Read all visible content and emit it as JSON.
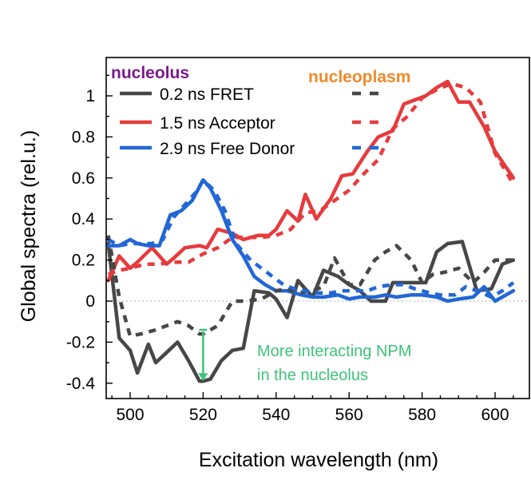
{
  "chart_data": {
    "type": "line",
    "title": "",
    "xlabel": "Excitation wavelength (nm)",
    "ylabel": "Global spectra (rel.u.)",
    "xlim": [
      494,
      605
    ],
    "ylim": [
      -0.47,
      1.17
    ],
    "x_ticks": [
      500,
      520,
      540,
      560,
      580,
      600
    ],
    "y_ticks": [
      -0.4,
      -0.2,
      0,
      0.2,
      0.4,
      0.6,
      0.8,
      1
    ],
    "x_tick_labels": [
      "500",
      "520",
      "540",
      "560",
      "580",
      "600"
    ],
    "y_tick_labels": [
      "-0.4",
      "-0.2",
      "0",
      "0.2",
      "0.4",
      "0.6",
      "0.8",
      "1"
    ],
    "zero_line": true,
    "groups": [
      {
        "title": "nucleolus",
        "color": "#7a1a8c",
        "line_style": "solid"
      },
      {
        "title": "nucleoplasm",
        "color": "#ee8a2a",
        "line_style": "dashed"
      }
    ],
    "series": [
      {
        "name": "0.2 ns FRET",
        "group": "nucleolus",
        "style": "solid",
        "color": "#474747",
        "x": [
          494,
          497,
          500,
          502,
          505,
          507,
          510,
          513,
          516,
          519,
          520,
          522,
          525,
          528,
          531,
          534,
          538,
          540,
          543,
          546,
          550,
          553,
          557,
          560,
          563,
          566,
          570,
          572,
          575,
          578,
          581,
          584,
          587,
          591,
          595,
          599,
          602,
          605
        ],
        "y": [
          0.28,
          -0.18,
          -0.24,
          -0.35,
          -0.21,
          -0.3,
          -0.25,
          -0.2,
          -0.29,
          -0.39,
          -0.39,
          -0.38,
          -0.29,
          -0.24,
          -0.23,
          0.05,
          0.04,
          0.01,
          -0.08,
          0.1,
          0.02,
          0.15,
          0.12,
          0.08,
          0.05,
          0.0,
          0.0,
          0.09,
          0.09,
          0.09,
          0.09,
          0.24,
          0.28,
          0.29,
          0.05,
          0.06,
          0.18,
          0.2
        ]
      },
      {
        "name": "1.5 ns Acceptor",
        "group": "nucleolus",
        "style": "solid",
        "color": "#e63b3d",
        "x": [
          494,
          497,
          500,
          502,
          506,
          510,
          512,
          515,
          519,
          521,
          524,
          528,
          531,
          535,
          538,
          540,
          543,
          546,
          548,
          551,
          555,
          558,
          561,
          565,
          568,
          572,
          575,
          578,
          581,
          584,
          587,
          590,
          593,
          597,
          600,
          605
        ],
        "y": [
          0.1,
          0.22,
          0.16,
          0.19,
          0.26,
          0.18,
          0.21,
          0.26,
          0.27,
          0.26,
          0.35,
          0.33,
          0.3,
          0.32,
          0.32,
          0.35,
          0.44,
          0.39,
          0.52,
          0.4,
          0.5,
          0.61,
          0.62,
          0.73,
          0.8,
          0.83,
          0.96,
          0.98,
          1.0,
          1.04,
          1.07,
          0.97,
          0.97,
          0.85,
          0.73,
          0.6
        ]
      },
      {
        "name": "2.9 ns Free Donor",
        "group": "nucleolus",
        "style": "solid",
        "color": "#2267d6",
        "x": [
          494,
          497,
          500,
          502,
          505,
          508,
          511,
          514,
          517,
          520,
          522,
          525,
          528,
          531,
          534,
          537,
          540,
          543,
          547,
          550,
          553,
          557,
          560,
          563,
          567,
          570,
          573,
          577,
          580,
          584,
          587,
          590,
          594,
          597,
          600,
          603,
          605
        ],
        "y": [
          0.27,
          0.27,
          0.3,
          0.28,
          0.27,
          0.27,
          0.42,
          0.44,
          0.49,
          0.59,
          0.55,
          0.44,
          0.3,
          0.22,
          0.12,
          0.08,
          0.05,
          0.05,
          0.03,
          0.02,
          0.02,
          0.03,
          0.01,
          0.02,
          0.02,
          0.03,
          0.02,
          0.03,
          0.03,
          0.02,
          0.0,
          0.01,
          0.02,
          0.07,
          0.0,
          0.03,
          0.05
        ]
      },
      {
        "name": "0.2 ns FRET",
        "group": "nucleoplasm",
        "style": "dashed",
        "color": "#474747",
        "x": [
          494,
          497,
          500,
          503,
          507,
          510,
          513,
          516,
          519,
          520,
          524,
          528,
          532,
          536,
          540,
          543,
          546,
          550,
          553,
          556,
          560,
          563,
          567,
          570,
          573,
          577,
          580,
          583,
          586,
          590,
          594,
          597,
          600,
          605
        ],
        "y": [
          0.32,
          0.02,
          -0.17,
          -0.16,
          -0.14,
          -0.12,
          -0.1,
          -0.12,
          -0.16,
          -0.16,
          -0.12,
          0.0,
          0.0,
          0.01,
          0.05,
          0.06,
          0.04,
          0.05,
          0.07,
          0.21,
          0.08,
          0.08,
          0.2,
          0.24,
          0.27,
          0.2,
          0.09,
          0.13,
          0.14,
          0.16,
          0.09,
          0.14,
          0.2,
          0.2
        ]
      },
      {
        "name": "1.5 ns Acceptor",
        "group": "nucleoplasm",
        "style": "dashed",
        "color": "#e63b3d",
        "x": [
          494,
          497,
          500,
          504,
          508,
          512,
          516,
          520,
          524,
          528,
          532,
          536,
          540,
          544,
          548,
          552,
          556,
          560,
          564,
          568,
          572,
          576,
          580,
          584,
          588,
          592,
          596,
          600,
          605
        ],
        "y": [
          0.13,
          0.15,
          0.16,
          0.18,
          0.18,
          0.19,
          0.19,
          0.23,
          0.26,
          0.31,
          0.31,
          0.31,
          0.32,
          0.35,
          0.43,
          0.44,
          0.49,
          0.54,
          0.62,
          0.69,
          0.84,
          0.9,
          0.99,
          1.03,
          1.06,
          1.04,
          0.97,
          0.72,
          0.57
        ]
      },
      {
        "name": "2.9 ns Free Donor",
        "group": "nucleoplasm",
        "style": "dashed",
        "color": "#2267d6",
        "x": [
          494,
          497,
          500,
          503,
          506,
          509,
          512,
          515,
          518,
          520,
          523,
          526,
          529,
          533,
          536,
          539,
          542,
          545,
          548,
          551,
          555,
          558,
          561,
          565,
          568,
          572,
          575,
          578,
          582,
          585,
          589,
          592,
          595,
          599,
          602,
          605
        ],
        "y": [
          0.3,
          0.27,
          0.28,
          0.28,
          0.28,
          0.3,
          0.41,
          0.47,
          0.53,
          0.59,
          0.54,
          0.44,
          0.28,
          0.2,
          0.16,
          0.12,
          0.08,
          0.06,
          0.05,
          0.04,
          0.04,
          0.05,
          0.05,
          0.05,
          0.07,
          0.08,
          0.08,
          0.06,
          0.04,
          0.03,
          0.03,
          0.07,
          0.05,
          0.02,
          0.05,
          0.09
        ]
      }
    ],
    "annotation": {
      "text_line1": "More interacting NPM",
      "text_line2": "in the nucleolus",
      "color": "#3ec47b",
      "arrow_x": 520,
      "arrow_y_from": -0.14,
      "arrow_y_to": -0.39
    }
  }
}
